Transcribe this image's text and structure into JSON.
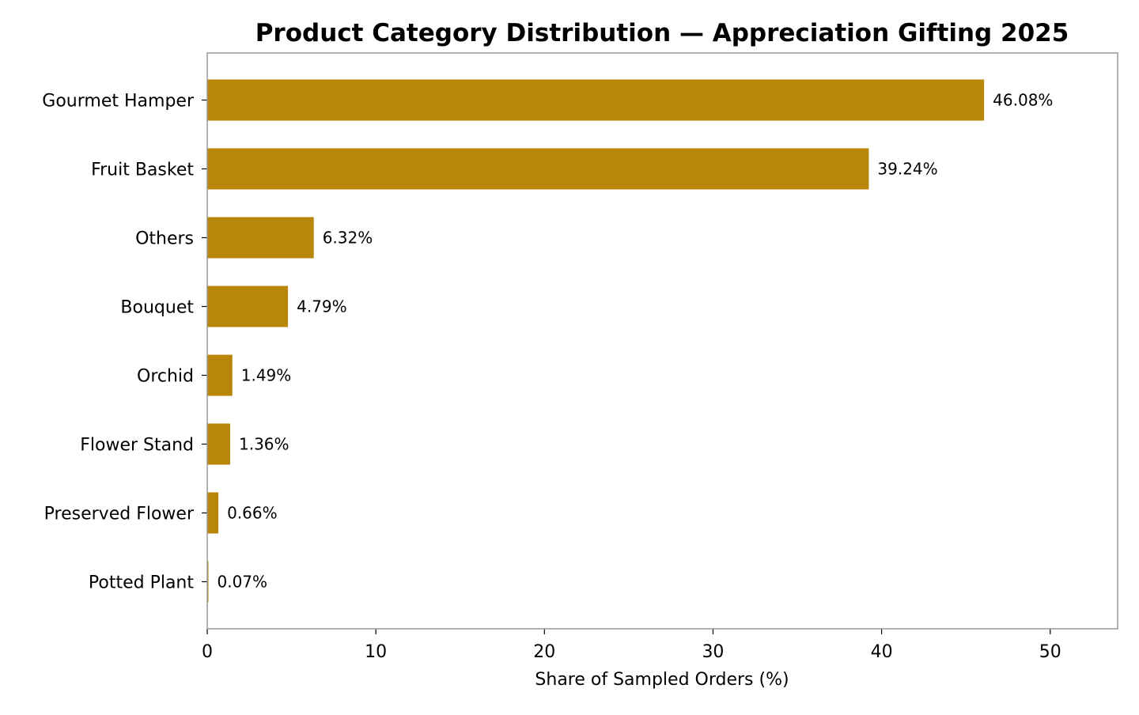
{
  "chart_data": {
    "type": "bar",
    "orientation": "horizontal",
    "title": "Product Category Distribution — Appreciation Gifting 2025",
    "xlabel": "Share of Sampled Orders (%)",
    "ylabel": "",
    "categories": [
      "Gourmet Hamper",
      "Fruit Basket",
      "Others",
      "Bouquet",
      "Orchid",
      "Flower Stand",
      "Preserved Flower",
      "Potted Plant"
    ],
    "values": [
      46.08,
      39.24,
      6.32,
      4.79,
      1.49,
      1.36,
      0.66,
      0.07
    ],
    "value_labels": [
      "46.08%",
      "39.24%",
      "6.32%",
      "4.79%",
      "1.49%",
      "1.36%",
      "0.66%",
      "0.07%"
    ],
    "xlim": [
      0,
      54
    ],
    "xticks": [
      0,
      10,
      20,
      30,
      40,
      50
    ],
    "grid": false,
    "legend": "none",
    "bar_color": "#b8860b",
    "frame_color": "#999999"
  }
}
